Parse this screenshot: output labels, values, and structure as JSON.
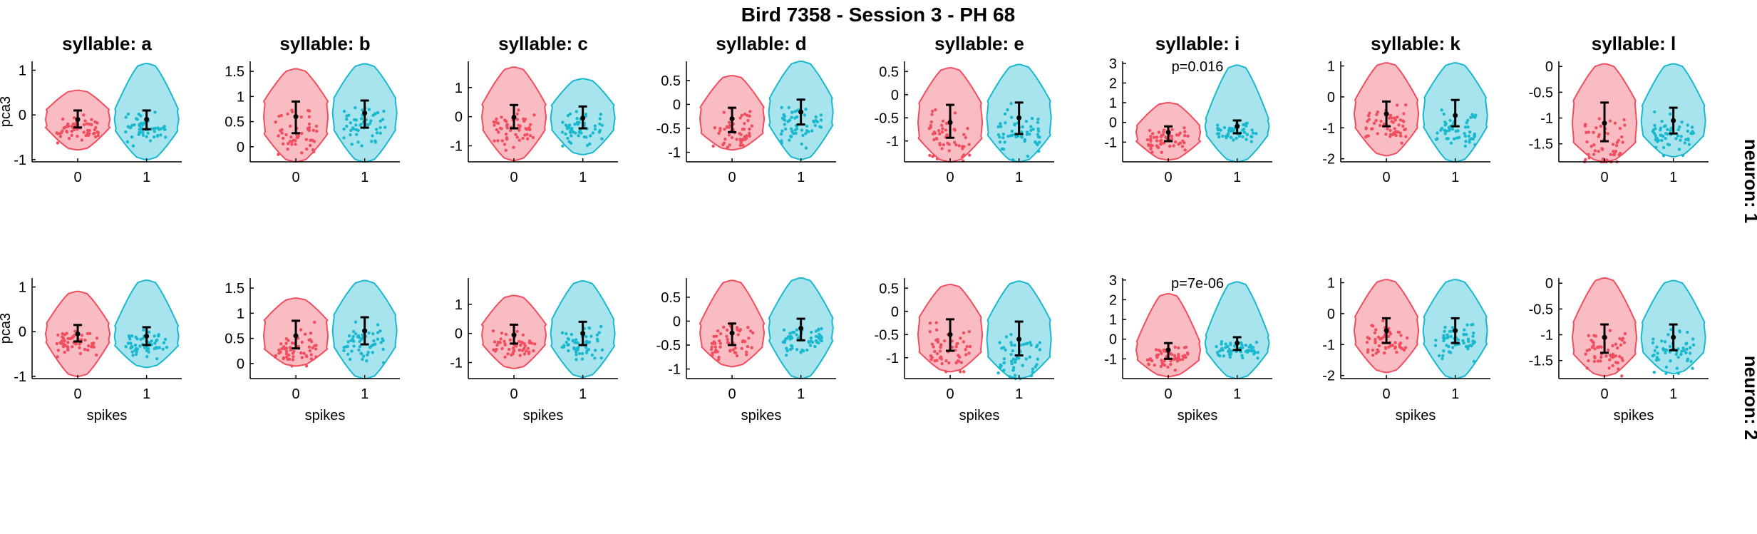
{
  "figure": {
    "title": "Bird 7358 - Session 3 - PH 68",
    "xlabel": "spikes",
    "ylabel": "pca3",
    "row_labels": [
      "neuron: 1",
      "neuron: 2"
    ],
    "colors": {
      "spike0": "#f04e5e",
      "spike1": "#19b8cf",
      "error_bar": "#000000"
    }
  },
  "chart_data": [
    {
      "type": "violin",
      "row": 0,
      "title": "syllable: a",
      "xlabel": "",
      "ylabel": "pca3",
      "categories": [
        "0",
        "1"
      ],
      "ylim": [
        -1.05,
        1.2
      ],
      "yticks": [
        -1,
        0,
        1
      ],
      "annotation": "",
      "series": [
        {
          "name": "0",
          "median": -0.1,
          "q1": -0.28,
          "q3": 0.1,
          "min": -0.78,
          "max": 0.55
        },
        {
          "name": "1",
          "median": -0.1,
          "q1": -0.32,
          "q3": 0.1,
          "min": -1.0,
          "max": 1.15
        }
      ]
    },
    {
      "type": "violin",
      "row": 0,
      "title": "syllable: b",
      "xlabel": "",
      "ylabel": "",
      "categories": [
        "0",
        "1"
      ],
      "ylim": [
        -0.3,
        1.7
      ],
      "yticks": [
        0,
        0.5,
        1,
        1.5
      ],
      "annotation": "",
      "series": [
        {
          "name": "0",
          "median": 0.6,
          "q1": 0.27,
          "q3": 0.9,
          "min": -0.3,
          "max": 1.55
        },
        {
          "name": "1",
          "median": 0.67,
          "q1": 0.38,
          "q3": 0.92,
          "min": -0.3,
          "max": 1.65
        }
      ]
    },
    {
      "type": "violin",
      "row": 0,
      "title": "syllable: c",
      "xlabel": "",
      "ylabel": "",
      "categories": [
        "0",
        "1"
      ],
      "ylim": [
        -1.55,
        1.9
      ],
      "yticks": [
        -1,
        0,
        1
      ],
      "annotation": "",
      "series": [
        {
          "name": "0",
          "median": -0.02,
          "q1": -0.4,
          "q3": 0.4,
          "min": -1.5,
          "max": 1.7
        },
        {
          "name": "1",
          "median": -0.05,
          "q1": -0.4,
          "q3": 0.35,
          "min": -1.3,
          "max": 1.3
        }
      ]
    },
    {
      "type": "violin",
      "row": 0,
      "title": "syllable: d",
      "xlabel": "",
      "ylabel": "",
      "categories": [
        "0",
        "1"
      ],
      "ylim": [
        -1.2,
        0.9
      ],
      "yticks": [
        -1,
        -0.5,
        0,
        0.5
      ],
      "annotation": "",
      "series": [
        {
          "name": "0",
          "median": -0.3,
          "q1": -0.58,
          "q3": -0.07,
          "min": -0.95,
          "max": 0.6
        },
        {
          "name": "1",
          "median": -0.16,
          "q1": -0.42,
          "q3": 0.1,
          "min": -1.15,
          "max": 0.9
        }
      ]
    },
    {
      "type": "violin",
      "row": 0,
      "title": "syllable: e",
      "xlabel": "",
      "ylabel": "",
      "categories": [
        "0",
        "1"
      ],
      "ylim": [
        -1.45,
        0.72
      ],
      "yticks": [
        -1,
        -0.5,
        0,
        0.5
      ],
      "annotation": "",
      "series": [
        {
          "name": "0",
          "median": -0.6,
          "q1": -0.93,
          "q3": -0.22,
          "min": -1.45,
          "max": 0.58
        },
        {
          "name": "1",
          "median": -0.5,
          "q1": -0.85,
          "q3": -0.17,
          "min": -1.45,
          "max": 0.65
        }
      ]
    },
    {
      "type": "violin",
      "row": 0,
      "title": "syllable: i",
      "xlabel": "",
      "ylabel": "",
      "categories": [
        "0",
        "1"
      ],
      "ylim": [
        -2.0,
        3.1
      ],
      "yticks": [
        -1,
        0,
        1,
        2,
        3
      ],
      "annotation": "p=0.016",
      "series": [
        {
          "name": "0",
          "median": -0.5,
          "q1": -0.95,
          "q3": -0.2,
          "min": -1.9,
          "max": 1.0
        },
        {
          "name": "1",
          "median": -0.2,
          "q1": -0.55,
          "q3": 0.1,
          "min": -2.0,
          "max": 2.9
        }
      ]
    },
    {
      "type": "violin",
      "row": 0,
      "title": "syllable: k",
      "xlabel": "",
      "ylabel": "",
      "categories": [
        "0",
        "1"
      ],
      "ylim": [
        -2.1,
        1.15
      ],
      "yticks": [
        -2,
        -1,
        0,
        1
      ],
      "annotation": "",
      "series": [
        {
          "name": "0",
          "median": -0.55,
          "q1": -0.95,
          "q3": -0.15,
          "min": -1.9,
          "max": 1.1
        },
        {
          "name": "1",
          "median": -0.6,
          "q1": -0.95,
          "q3": -0.1,
          "min": -2.1,
          "max": 1.1
        }
      ]
    },
    {
      "type": "violin",
      "row": 0,
      "title": "syllable: l",
      "xlabel": "",
      "ylabel": "",
      "categories": [
        "0",
        "1"
      ],
      "ylim": [
        -1.85,
        0.1
      ],
      "yticks": [
        -1.5,
        -1,
        -0.5,
        0
      ],
      "annotation": "",
      "series": [
        {
          "name": "0",
          "median": -1.1,
          "q1": -1.45,
          "q3": -0.7,
          "min": -1.85,
          "max": 0.05
        },
        {
          "name": "1",
          "median": -1.05,
          "q1": -1.3,
          "q3": -0.8,
          "min": -1.75,
          "max": 0.05
        }
      ]
    },
    {
      "type": "violin",
      "row": 1,
      "title": "",
      "xlabel": "spikes",
      "ylabel": "pca3",
      "categories": [
        "0",
        "1"
      ],
      "ylim": [
        -1.05,
        1.2
      ],
      "yticks": [
        -1,
        0,
        1
      ],
      "annotation": "",
      "series": [
        {
          "name": "0",
          "median": -0.05,
          "q1": -0.22,
          "q3": 0.15,
          "min": -1.0,
          "max": 0.9
        },
        {
          "name": "1",
          "median": -0.1,
          "q1": -0.3,
          "q3": 0.1,
          "min": -0.8,
          "max": 1.15
        }
      ]
    },
    {
      "type": "violin",
      "row": 1,
      "title": "",
      "xlabel": "spikes",
      "ylabel": "",
      "categories": [
        "0",
        "1"
      ],
      "ylim": [
        -0.3,
        1.7
      ],
      "yticks": [
        0,
        0.5,
        1,
        1.5
      ],
      "annotation": "",
      "series": [
        {
          "name": "0",
          "median": 0.55,
          "q1": 0.3,
          "q3": 0.85,
          "min": -0.05,
          "max": 1.3
        },
        {
          "name": "1",
          "median": 0.65,
          "q1": 0.38,
          "q3": 0.92,
          "min": -0.3,
          "max": 1.65
        }
      ]
    },
    {
      "type": "violin",
      "row": 1,
      "title": "",
      "xlabel": "spikes",
      "ylabel": "",
      "categories": [
        "0",
        "1"
      ],
      "ylim": [
        -1.55,
        1.9
      ],
      "yticks": [
        -1,
        0,
        1
      ],
      "annotation": "",
      "series": [
        {
          "name": "0",
          "median": -0.05,
          "q1": -0.35,
          "q3": 0.3,
          "min": -1.2,
          "max": 1.3
        },
        {
          "name": "1",
          "median": 0.0,
          "q1": -0.4,
          "q3": 0.4,
          "min": -1.5,
          "max": 1.8
        }
      ]
    },
    {
      "type": "violin",
      "row": 1,
      "title": "",
      "xlabel": "spikes",
      "ylabel": "",
      "categories": [
        "0",
        "1"
      ],
      "ylim": [
        -1.2,
        0.9
      ],
      "yticks": [
        -1,
        -0.5,
        0,
        0.5
      ],
      "annotation": "",
      "series": [
        {
          "name": "0",
          "median": -0.25,
          "q1": -0.5,
          "q3": -0.05,
          "min": -0.95,
          "max": 0.85
        },
        {
          "name": "1",
          "median": -0.15,
          "q1": -0.4,
          "q3": 0.05,
          "min": -1.2,
          "max": 0.9
        }
      ]
    },
    {
      "type": "violin",
      "row": 1,
      "title": "",
      "xlabel": "spikes",
      "ylabel": "",
      "categories": [
        "0",
        "1"
      ],
      "ylim": [
        -1.45,
        0.72
      ],
      "yticks": [
        -1,
        -0.5,
        0,
        0.5
      ],
      "annotation": "",
      "series": [
        {
          "name": "0",
          "median": -0.5,
          "q1": -0.85,
          "q3": -0.17,
          "min": -1.3,
          "max": 0.58
        },
        {
          "name": "1",
          "median": -0.6,
          "q1": -0.95,
          "q3": -0.22,
          "min": -1.45,
          "max": 0.65
        }
      ]
    },
    {
      "type": "violin",
      "row": 1,
      "title": "",
      "xlabel": "spikes",
      "ylabel": "",
      "categories": [
        "0",
        "1"
      ],
      "ylim": [
        -2.0,
        3.1
      ],
      "yticks": [
        -1,
        0,
        1,
        2,
        3
      ],
      "annotation": "p=7e-06",
      "series": [
        {
          "name": "0",
          "median": -0.55,
          "q1": -1.0,
          "q3": -0.2,
          "min": -1.9,
          "max": 2.3
        },
        {
          "name": "1",
          "median": -0.2,
          "q1": -0.55,
          "q3": 0.1,
          "min": -2.0,
          "max": 2.9
        }
      ]
    },
    {
      "type": "violin",
      "row": 1,
      "title": "",
      "xlabel": "spikes",
      "ylabel": "",
      "categories": [
        "0",
        "1"
      ],
      "ylim": [
        -2.1,
        1.15
      ],
      "yticks": [
        -2,
        -1,
        0,
        1
      ],
      "annotation": "",
      "series": [
        {
          "name": "0",
          "median": -0.55,
          "q1": -0.95,
          "q3": -0.15,
          "min": -1.9,
          "max": 1.1
        },
        {
          "name": "1",
          "median": -0.55,
          "q1": -0.95,
          "q3": -0.15,
          "min": -2.1,
          "max": 1.1
        }
      ]
    },
    {
      "type": "violin",
      "row": 1,
      "title": "",
      "xlabel": "spikes",
      "ylabel": "",
      "categories": [
        "0",
        "1"
      ],
      "ylim": [
        -1.85,
        0.1
      ],
      "yticks": [
        -1.5,
        -1,
        -0.5,
        0
      ],
      "annotation": "",
      "series": [
        {
          "name": "0",
          "median": -1.05,
          "q1": -1.35,
          "q3": -0.8,
          "min": -1.8,
          "max": 0.1
        },
        {
          "name": "1",
          "median": -1.05,
          "q1": -1.3,
          "q3": -0.8,
          "min": -1.75,
          "max": 0.05
        }
      ]
    }
  ]
}
